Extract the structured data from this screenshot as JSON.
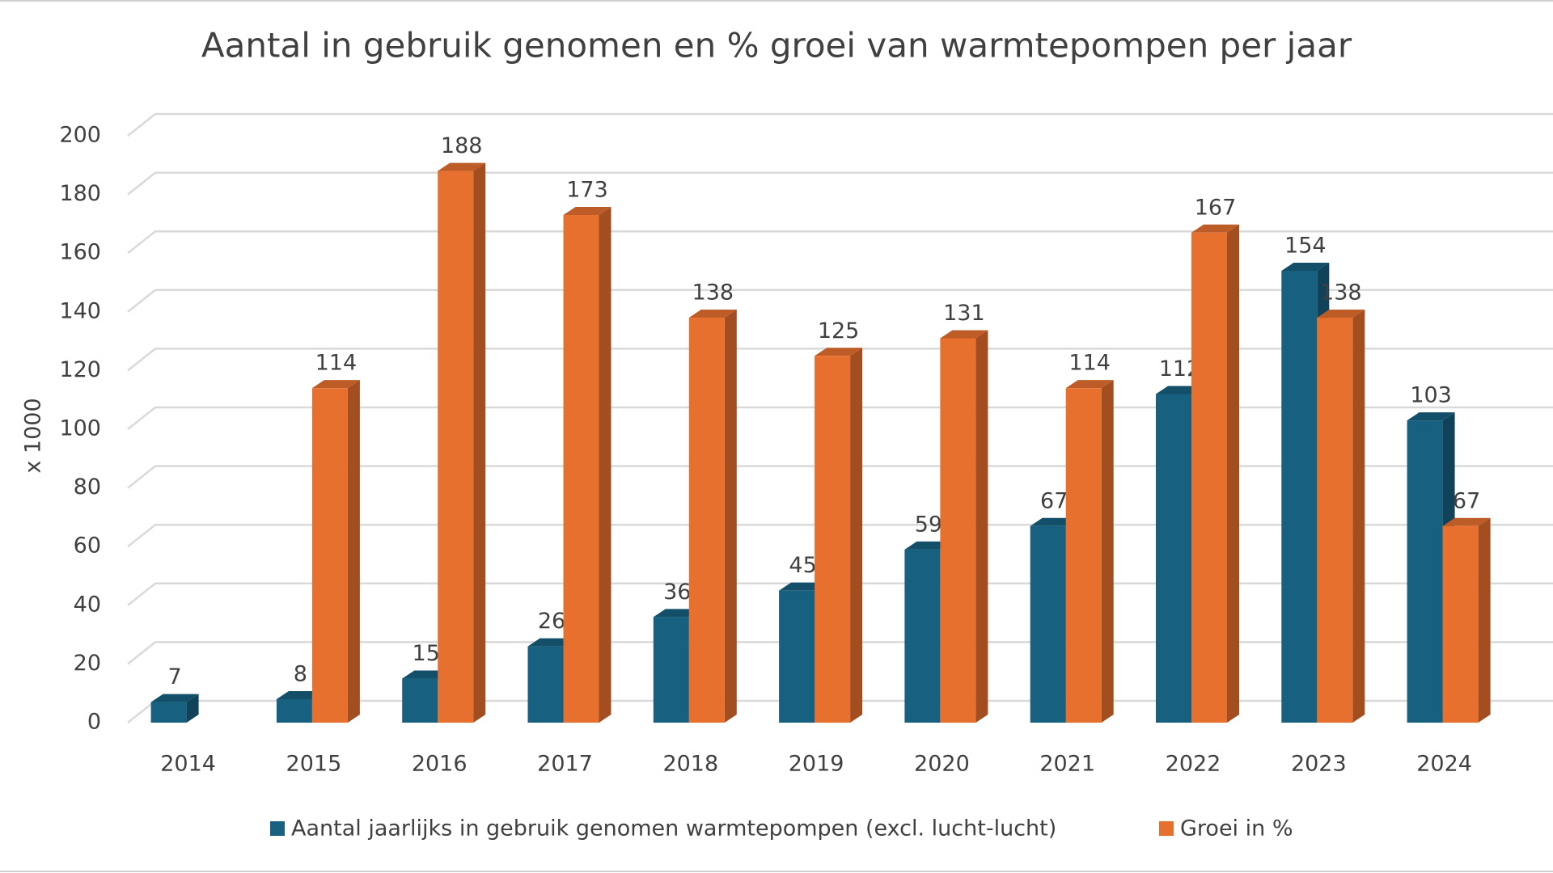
{
  "chart_data": {
    "type": "bar3d",
    "title": "Aantal in gebruik genomen en % groei van warmtepompen per jaar",
    "y_label": "x 1000",
    "categories": [
      "2014",
      "2015",
      "2016",
      "2017",
      "2018",
      "2019",
      "2020",
      "2021",
      "2022",
      "2023",
      "2024"
    ],
    "series": [
      {
        "name": "Aantal jaarlijks in gebruik genomen warmtepompen (excl. lucht-lucht)",
        "color": "#17607f",
        "values": [
          7,
          8,
          15,
          26,
          36,
          45,
          59,
          67,
          112,
          154,
          103
        ]
      },
      {
        "name": "Groei in %",
        "color": "#e8702f",
        "values": [
          null,
          114,
          188,
          173,
          138,
          125,
          131,
          114,
          167,
          138,
          67
        ]
      }
    ],
    "ylim": [
      0,
      200
    ],
    "yticks": [
      0,
      20,
      40,
      60,
      80,
      100,
      120,
      140,
      160,
      180,
      200
    ],
    "grid": true,
    "legend": "bottom",
    "data_labels": true
  }
}
